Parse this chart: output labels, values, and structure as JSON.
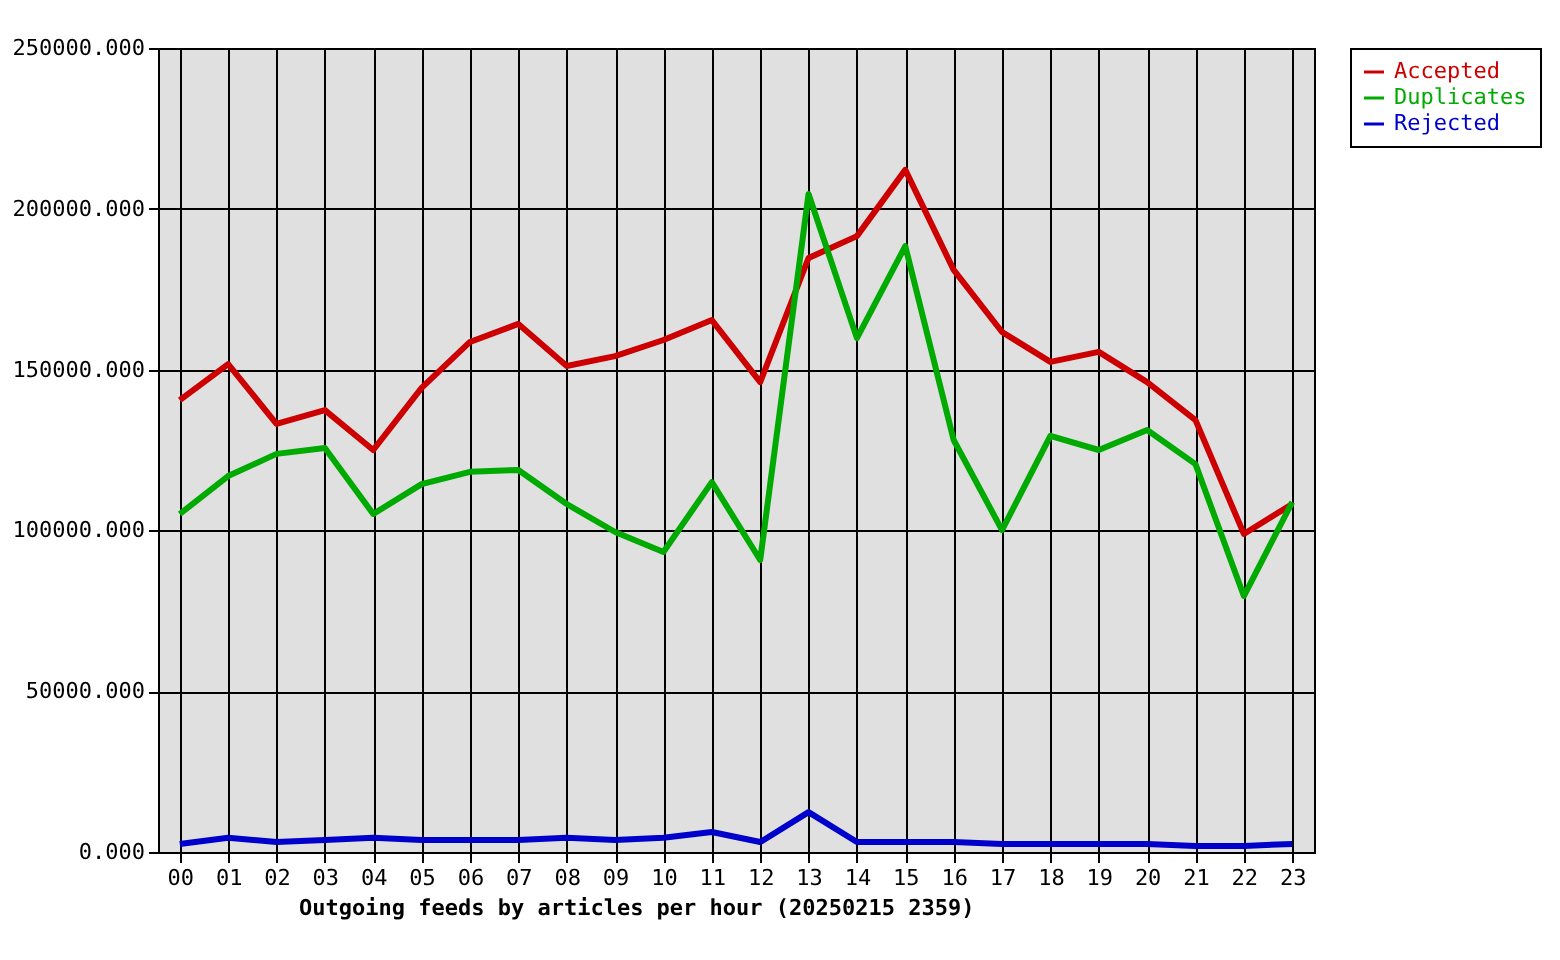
{
  "chart_data": {
    "type": "line",
    "xlabel": "Outgoing feeds by articles per hour (20250215 2359)",
    "categories": [
      "00",
      "01",
      "02",
      "03",
      "04",
      "05",
      "06",
      "07",
      "08",
      "09",
      "10",
      "11",
      "12",
      "13",
      "14",
      "15",
      "16",
      "17",
      "18",
      "19",
      "20",
      "21",
      "22",
      "23"
    ],
    "series": [
      {
        "name": "Accepted",
        "color": "#cc0000",
        "values": [
          140500,
          151700,
          133100,
          137400,
          125000,
          144300,
          158600,
          164200,
          151100,
          154200,
          159200,
          165400,
          146100,
          184700,
          191500,
          212100,
          181000,
          161700,
          152400,
          155500,
          146100,
          134300,
          98900,
          108200
        ]
      },
      {
        "name": "Duplicates",
        "color": "#00aa00",
        "values": [
          105100,
          116900,
          123800,
          125600,
          105100,
          114400,
          118200,
          118800,
          108200,
          99500,
          93300,
          115000,
          90800,
          204600,
          159800,
          188400,
          128100,
          100100,
          129400,
          125000,
          131200,
          120600,
          79600,
          108800
        ]
      },
      {
        "name": "Rejected",
        "color": "#0000cc",
        "values": [
          2500,
          4400,
          3100,
          3700,
          4400,
          3700,
          3700,
          3700,
          4400,
          3700,
          4400,
          6200,
          3100,
          12400,
          3100,
          3100,
          3100,
          2500,
          2500,
          2500,
          2500,
          1900,
          1900,
          2500
        ]
      }
    ],
    "ylim": [
      0,
      250000
    ],
    "yticks": [
      {
        "value": 0,
        "label": "0.000"
      },
      {
        "value": 50000,
        "label": "50000.000"
      },
      {
        "value": 100000,
        "label": "100000.000"
      },
      {
        "value": 150000,
        "label": "150000.000"
      },
      {
        "value": 200000,
        "label": "200000.000"
      },
      {
        "value": 250000,
        "label": "250000.000"
      }
    ],
    "grid": true,
    "legend": "top right",
    "marker": "none",
    "line_style": "solid"
  }
}
